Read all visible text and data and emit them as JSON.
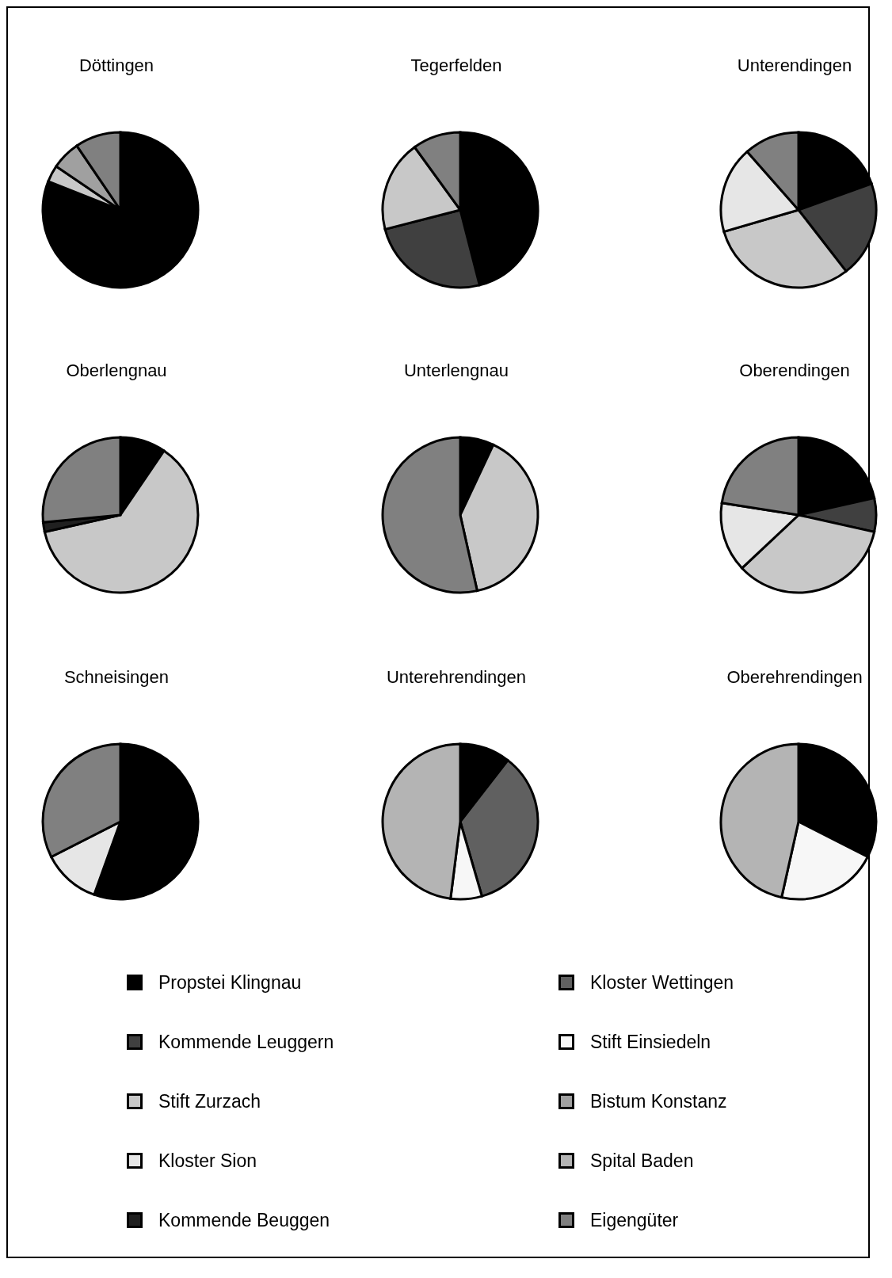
{
  "chart_data": [
    {
      "type": "pie",
      "title": "Döttingen",
      "categories": [
        "Propstei Klingnau",
        "Kommende Leuggern",
        "Stift Zurzach",
        "Kloster Sion",
        "Kommende Beuggen",
        "Kloster Wettingen",
        "Stift Einsiedeln",
        "Bistum Konstanz",
        "Spital Baden",
        "Eigengüter"
      ],
      "values": [
        81,
        0,
        3.5,
        0,
        0,
        0,
        0,
        6,
        0,
        9.5
      ],
      "colors": [
        "#000000",
        "#404040",
        "#c8c8c8",
        "#e6e6e6",
        "#202020",
        "#606060",
        "#f7f7f7",
        "#a0a0a0",
        "#b4b4b4",
        "#808080"
      ],
      "legend": "bottom"
    },
    {
      "type": "pie",
      "title": "Tegerfelden",
      "categories": [
        null,
        null,
        null,
        null,
        null,
        null,
        null,
        null,
        null,
        null
      ],
      "values": [
        46,
        25,
        19,
        0,
        0,
        0,
        0,
        0,
        0,
        10
      ],
      "colors": [
        "#000000",
        "#404040",
        "#c8c8c8",
        "#e6e6e6",
        "#202020",
        "#606060",
        "#f7f7f7",
        "#a0a0a0",
        "#b4b4b4",
        "#808080"
      ]
    },
    {
      "type": "pie",
      "title": "Unterendingen",
      "categories": [
        null,
        null,
        null,
        null,
        null,
        null,
        null,
        null,
        null,
        null
      ],
      "values": [
        19.5,
        20,
        31,
        18,
        0,
        0,
        0,
        0,
        0,
        11.5
      ],
      "colors": [
        "#000000",
        "#404040",
        "#c8c8c8",
        "#e6e6e6",
        "#202020",
        "#606060",
        "#f7f7f7",
        "#a0a0a0",
        "#b4b4b4",
        "#808080"
      ]
    },
    {
      "type": "pie",
      "title": "Oberlengnau",
      "categories": [
        null,
        null,
        null,
        null,
        null,
        null,
        null,
        null,
        null,
        null
      ],
      "values": [
        9.5,
        0,
        62,
        0,
        2,
        0,
        0,
        0,
        0,
        26.5
      ],
      "colors": [
        "#000000",
        "#404040",
        "#c8c8c8",
        "#e6e6e6",
        "#202020",
        "#606060",
        "#f7f7f7",
        "#a0a0a0",
        "#b4b4b4",
        "#808080"
      ]
    },
    {
      "type": "pie",
      "title": "Unterlengnau",
      "categories": [
        null,
        null,
        null,
        null,
        null,
        null,
        null,
        null,
        null,
        null
      ],
      "values": [
        7,
        0,
        39.5,
        0,
        0,
        0,
        0,
        0,
        0,
        53.5
      ],
      "colors": [
        "#000000",
        "#404040",
        "#c8c8c8",
        "#e6e6e6",
        "#202020",
        "#606060",
        "#f7f7f7",
        "#a0a0a0",
        "#b4b4b4",
        "#808080"
      ]
    },
    {
      "type": "pie",
      "title": "Oberendingen",
      "categories": [
        null,
        null,
        null,
        null,
        null,
        null,
        null,
        null,
        null,
        null
      ],
      "values": [
        21.5,
        7,
        34.5,
        14.5,
        0,
        0,
        0,
        0,
        0,
        22.5
      ],
      "colors": [
        "#000000",
        "#404040",
        "#c8c8c8",
        "#e6e6e6",
        "#202020",
        "#606060",
        "#f7f7f7",
        "#a0a0a0",
        "#b4b4b4",
        "#808080"
      ]
    },
    {
      "type": "pie",
      "title": "Schneisingen",
      "categories": [
        null,
        null,
        null,
        null,
        null,
        null,
        null,
        null,
        null,
        null
      ],
      "values": [
        55.5,
        0,
        0,
        12,
        0,
        0,
        0,
        0,
        0,
        32.5
      ],
      "colors": [
        "#000000",
        "#404040",
        "#c8c8c8",
        "#e6e6e6",
        "#202020",
        "#606060",
        "#f7f7f7",
        "#a0a0a0",
        "#b4b4b4",
        "#808080"
      ]
    },
    {
      "type": "pie",
      "title": "Unterehrendingen",
      "categories": [
        null,
        null,
        null,
        null,
        null,
        null,
        null,
        null,
        null,
        null
      ],
      "values": [
        10.5,
        0,
        0,
        0,
        0,
        35,
        6.5,
        0,
        48,
        0
      ],
      "colors": [
        "#000000",
        "#404040",
        "#c8c8c8",
        "#e6e6e6",
        "#202020",
        "#606060",
        "#f7f7f7",
        "#a0a0a0",
        "#b4b4b4",
        "#808080"
      ]
    },
    {
      "type": "pie",
      "title": "Oberehrendingen",
      "categories": [
        null,
        null,
        null,
        null,
        null,
        null,
        null,
        null,
        null,
        null
      ],
      "values": [
        32.5,
        0,
        0,
        0,
        0,
        0,
        21,
        0,
        46.5,
        0
      ],
      "colors": [
        "#000000",
        "#404040",
        "#c8c8c8",
        "#e6e6e6",
        "#202020",
        "#606060",
        "#f7f7f7",
        "#a0a0a0",
        "#b4b4b4",
        "#808080"
      ]
    }
  ]
}
